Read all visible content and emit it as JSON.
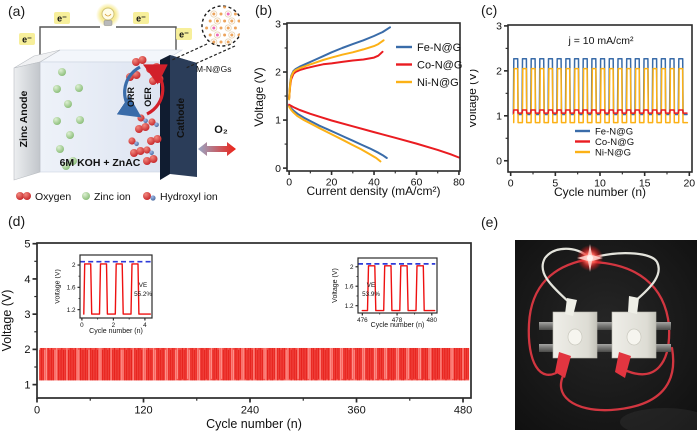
{
  "panel_labels": {
    "a": "(a)",
    "b": "(b)",
    "c": "(c)",
    "d": "(d)",
    "e": "(e)"
  },
  "panel_a": {
    "electron": "e⁻",
    "anode": "Zinc Anode",
    "cathode": "Cathode",
    "electrolyte": "6M KOH + ZnAC",
    "catalyst": "M-N@Gs",
    "orr": "ORR",
    "oer": "OER",
    "o2": "O₂",
    "legend": {
      "oxygen": "Oxygen",
      "zinc": "Zinc ion",
      "hydroxyl": "Hydroxyl ion"
    },
    "colors": {
      "oxygen": "#cf2027",
      "zinc": "#8cc87c",
      "hydroxyl": "#3f62b0",
      "cathode": "#2b3d59",
      "anode": "#d7dadd",
      "electrolyte": "#e7ecf5"
    }
  },
  "chart_data": [
    {
      "id": "b",
      "type": "line",
      "title": "",
      "xlabel": "Current density (mA/cm²)",
      "ylabel": "Voltage (V)",
      "xlim": [
        -1,
        80.5
      ],
      "ylim": [
        -0.06,
        3.02
      ],
      "xticks": [
        0,
        20,
        40,
        60,
        80
      ],
      "yticks": [
        0,
        1,
        2,
        3
      ],
      "legend": {
        "position": "top-right",
        "items": [
          {
            "label": "Fe-N@G",
            "color": "#3a6ca9"
          },
          {
            "label": "Co-N@G",
            "color": "#ea1c21"
          },
          {
            "label": "Ni-N@G",
            "color": "#fcb116"
          }
        ]
      },
      "series": [
        {
          "kind": "line",
          "name": "Fe-N@G charge",
          "color": "#3a6ca9",
          "x": [
            0,
            0.5,
            1,
            2,
            3,
            5,
            8,
            12,
            16,
            20,
            25,
            30,
            35,
            40,
            44,
            47.5
          ],
          "y": [
            1.45,
            1.78,
            1.92,
            2.02,
            2.06,
            2.11,
            2.17,
            2.25,
            2.33,
            2.41,
            2.5,
            2.58,
            2.66,
            2.75,
            2.83,
            2.93
          ]
        },
        {
          "kind": "line",
          "name": "Co-N@G charge",
          "color": "#ea1c21",
          "x": [
            0,
            0.5,
            1,
            2,
            3,
            5,
            8,
            12,
            16,
            20,
            25,
            30,
            35,
            40,
            42,
            44
          ],
          "y": [
            1.45,
            1.72,
            1.85,
            1.96,
            2.0,
            2.04,
            2.08,
            2.12,
            2.16,
            2.18,
            2.21,
            2.24,
            2.26,
            2.3,
            2.34,
            2.42
          ]
        },
        {
          "kind": "line",
          "name": "Ni-N@G charge",
          "color": "#fcb116",
          "x": [
            0,
            0.5,
            1,
            2,
            3,
            5,
            8,
            12,
            16,
            20,
            25,
            30,
            35,
            40,
            42,
            44.5
          ],
          "y": [
            1.43,
            1.75,
            1.9,
            2.0,
            2.04,
            2.08,
            2.13,
            2.19,
            2.25,
            2.3,
            2.36,
            2.41,
            2.47,
            2.54,
            2.58,
            2.66
          ]
        },
        {
          "kind": "line",
          "name": "Fe-N@G discharge",
          "color": "#3a6ca9",
          "x": [
            0,
            1,
            2,
            4,
            7,
            10,
            14,
            18,
            22,
            26,
            30,
            34,
            38,
            42,
            44,
            46
          ],
          "y": [
            1.3,
            1.24,
            1.2,
            1.13,
            1.05,
            0.98,
            0.89,
            0.81,
            0.73,
            0.65,
            0.57,
            0.49,
            0.41,
            0.32,
            0.27,
            0.21
          ]
        },
        {
          "kind": "line",
          "name": "Co-N@G discharge",
          "color": "#ea1c21",
          "x": [
            0,
            2,
            5,
            10,
            15,
            20,
            30,
            40,
            50,
            60,
            70,
            76,
            80
          ],
          "y": [
            1.32,
            1.27,
            1.21,
            1.13,
            1.06,
            0.99,
            0.87,
            0.75,
            0.63,
            0.51,
            0.38,
            0.29,
            0.22
          ]
        },
        {
          "kind": "line",
          "name": "Ni-N@G discharge",
          "color": "#fcb116",
          "x": [
            0,
            1,
            2,
            4,
            7,
            10,
            14,
            18,
            22,
            26,
            30,
            34,
            38,
            41,
            43
          ],
          "y": [
            1.28,
            1.21,
            1.16,
            1.08,
            1.0,
            0.93,
            0.84,
            0.75,
            0.66,
            0.57,
            0.48,
            0.39,
            0.29,
            0.21,
            0.14
          ]
        }
      ]
    },
    {
      "id": "c",
      "type": "line",
      "title": "",
      "xlabel": "Cycle number (n)",
      "ylabel": "Voltage (V)",
      "xlim": [
        -0.3,
        20.3
      ],
      "ylim": [
        -0.25,
        3.02
      ],
      "xticks": [
        0,
        5,
        10,
        15,
        20
      ],
      "yticks": [
        0,
        1,
        2,
        3
      ],
      "annotation": {
        "text": "j = 10 mA/cm²"
      },
      "legend": {
        "position": "bottom-right",
        "items": [
          {
            "label": "Fe-N@G",
            "color": "#3a6ca9"
          },
          {
            "label": "Co-N@G",
            "color": "#ea1c21"
          },
          {
            "label": "Ni-N@G",
            "color": "#fcb116"
          }
        ]
      },
      "series": [
        {
          "kind": "square",
          "name": "Fe-N@G",
          "color": "#3a6ca9",
          "x0": 0.3,
          "cycles": 20,
          "period": 0.972,
          "duty": 0.5,
          "ramp": 0.05,
          "high": 2.27,
          "low": 1.03
        },
        {
          "kind": "square",
          "name": "Ni-N@G",
          "color": "#fcb116",
          "x0": 0.34,
          "cycles": 20,
          "period": 0.972,
          "duty": 0.45,
          "ramp": 0.05,
          "high": 2.05,
          "low": 0.85
        },
        {
          "kind": "square",
          "name": "Co-N@G",
          "color": "#ea1c21",
          "x0": 0.3,
          "cycles": 20,
          "period": 0.972,
          "duty": 0.5,
          "ramp": 0.05,
          "high": 1.13,
          "low": 1.06
        }
      ]
    },
    {
      "id": "d",
      "type": "line",
      "title": "",
      "xlabel": "Cycle number (n)",
      "ylabel": "Voltage (V)",
      "xlim": [
        0,
        489
      ],
      "ylim": [
        0.62,
        5.02
      ],
      "xticks": [
        0,
        120,
        240,
        360,
        480
      ],
      "yticks": [
        1,
        2,
        3,
        4,
        5
      ],
      "series": [
        {
          "kind": "band",
          "name": "cycling band",
          "color_base": "#f4504a",
          "color_stripe": "#e51c17",
          "color_light": "#ff9a94",
          "x0": 3,
          "x1": 487,
          "low": 1.12,
          "high": 2.04
        }
      ]
    },
    {
      "id": "d1",
      "type": "line",
      "title": "",
      "xlabel": "Cycle number (n)",
      "ylabel": "Voltage (V)",
      "xlim": [
        -0.12,
        4.45
      ],
      "ylim": [
        1.05,
        2.18
      ],
      "xticks": [
        0,
        2,
        4
      ],
      "yticks": [
        1.2,
        1.6,
        2.0
      ],
      "annotation": {
        "lines": [
          "VE",
          "55.2%"
        ]
      },
      "series": [
        {
          "kind": "hdash",
          "name": "charge limit",
          "color": "#2e3bd8",
          "y": 2.06,
          "x0": -0.12,
          "x1": 4.45
        },
        {
          "kind": "square",
          "name": "voltage profile",
          "color": "#ee1111",
          "x0": 0.12,
          "cycles": 4,
          "period": 1.0,
          "duty": 0.44,
          "ramp": 0.06,
          "high": 2.02,
          "low": 1.12,
          "tail": 0.22
        }
      ]
    },
    {
      "id": "d2",
      "type": "line",
      "title": "",
      "xlabel": "Cycle number (n)",
      "ylabel": "Voltage (V)",
      "xlim": [
        475.75,
        480.3
      ],
      "ylim": [
        1.05,
        2.18
      ],
      "xticks": [
        476,
        478,
        480
      ],
      "yticks": [
        1.2,
        1.6,
        2.0
      ],
      "annotation": {
        "lines": [
          "VE",
          "53.9%"
        ]
      },
      "series": [
        {
          "kind": "hdash",
          "name": "charge limit",
          "color": "#2e3bd8",
          "y": 2.06,
          "x0": 475.75,
          "x1": 480.2
        },
        {
          "kind": "square",
          "name": "voltage profile",
          "color": "#ee1111",
          "x0": 476.3,
          "cycles": 4,
          "period": 0.93,
          "duty": 0.45,
          "ramp": 0.06,
          "high": 2.02,
          "low": 1.1,
          "lead": 0.3,
          "tail": 0.15
        }
      ]
    }
  ]
}
